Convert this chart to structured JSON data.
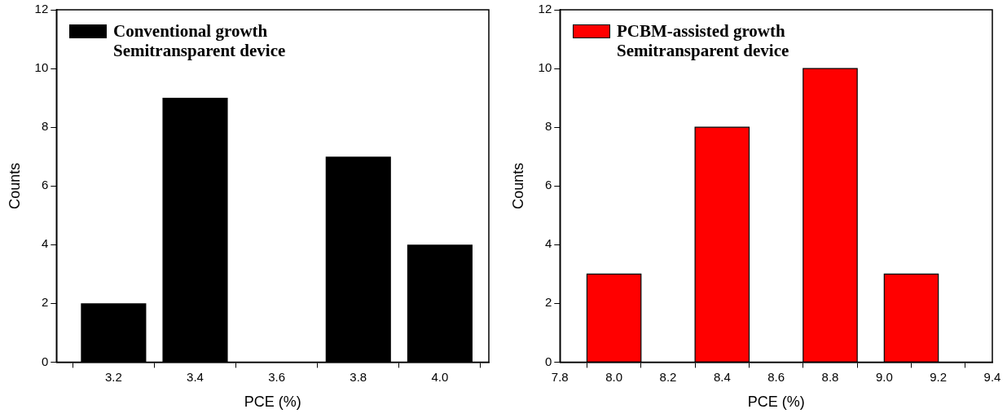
{
  "chart_data": [
    {
      "type": "bar",
      "xlabel": "PCE (%)",
      "ylabel": "Counts",
      "x": [
        3.2,
        3.4,
        3.6,
        3.8,
        4.0
      ],
      "series": [
        {
          "name": "Conventional growth\nSemitransparent device",
          "color": "#000000",
          "values": [
            2,
            9,
            0,
            7,
            4
          ]
        }
      ],
      "xlim": [
        3.06,
        4.12
      ],
      "xticks": [
        {
          "value": 3.2,
          "label": "3.2"
        },
        {
          "value": 3.4,
          "label": "3.4"
        },
        {
          "value": 3.6,
          "label": "3.6"
        },
        {
          "value": 3.8,
          "label": "3.8"
        },
        {
          "value": 4.0,
          "label": "4.0"
        }
      ],
      "ylim": [
        0,
        12
      ],
      "yticks": [
        0,
        2,
        4,
        6,
        8,
        10,
        12
      ],
      "legend": "top left",
      "grid": false
    },
    {
      "type": "histogram",
      "xlabel": "PCE (%)",
      "ylabel": "Counts",
      "bins": [
        7.9,
        8.1,
        8.3,
        8.5,
        8.7,
        8.9,
        9.0,
        9.2
      ],
      "series": [
        {
          "name": "PCBM-assisted growth\nSemitransparent device",
          "color": "#ff0000",
          "values": [
            3,
            0,
            8,
            0,
            10,
            0,
            3
          ]
        }
      ],
      "xlim": [
        7.8,
        9.4
      ],
      "xticks": [
        {
          "value": 7.8,
          "label": "7.8"
        },
        {
          "value": 8.0,
          "label": "8.0"
        },
        {
          "value": 8.2,
          "label": "8.2"
        },
        {
          "value": 8.4,
          "label": "8.4"
        },
        {
          "value": 8.6,
          "label": "8.6"
        },
        {
          "value": 8.8,
          "label": "8.8"
        },
        {
          "value": 9.0,
          "label": "9.0"
        },
        {
          "value": 9.2,
          "label": "9.2"
        },
        {
          "value": 9.4,
          "label": "9.4"
        }
      ],
      "ylim": [
        0,
        12
      ],
      "yticks": [
        0,
        2,
        4,
        6,
        8,
        10,
        12
      ],
      "legend": "top left",
      "grid": false
    }
  ]
}
